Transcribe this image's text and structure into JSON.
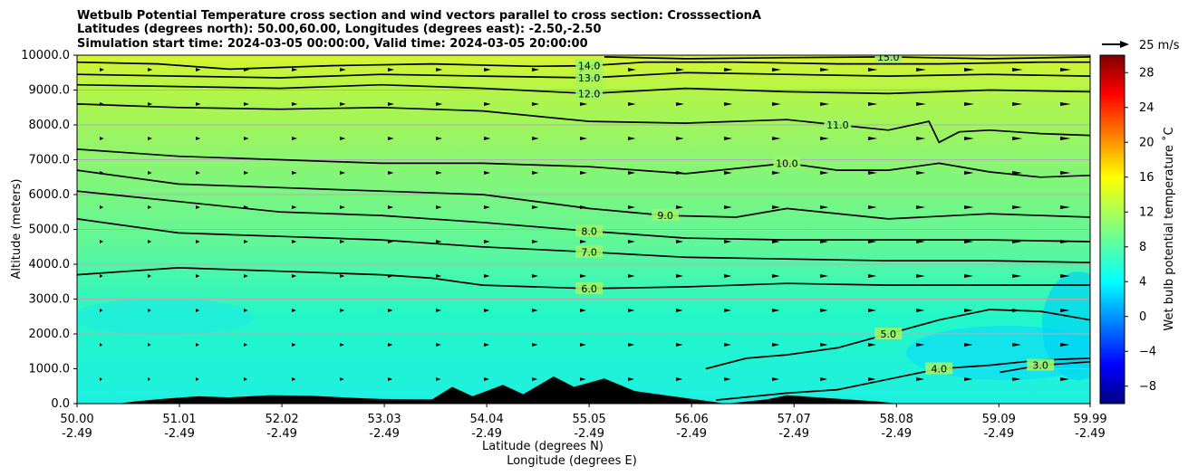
{
  "chart_data": {
    "type": "contour",
    "title_lines": [
      "Wetbulb Potential Temperature cross section and wind vectors parallel to cross section: CrosssectionA",
      "Latitudes (degrees north): 50.00,60.00, Longitudes (degrees east): -2.50,-2.50",
      "Simulation start time: 2024-03-05 00:00:00, Valid time: 2024-03-05 20:00:00"
    ],
    "ylabel": "Altitude (meters)",
    "xlabel_lines": [
      "Latitude (degrees N)",
      "Longitude (degrees E)"
    ],
    "ylim": [
      0,
      10000
    ],
    "y_ticks": [
      0,
      1000,
      2000,
      3000,
      4000,
      5000,
      6000,
      7000,
      8000,
      9000,
      10000
    ],
    "y_tick_labels": [
      "0.0",
      "1000.0",
      "2000.0",
      "3000.0",
      "4000.0",
      "5000.0",
      "6000.0",
      "7000.0",
      "8000.0",
      "9000.0",
      "10000.0"
    ],
    "xlim": [
      50.0,
      59.99
    ],
    "x_ticks": [
      50.0,
      51.01,
      52.02,
      53.03,
      54.04,
      55.05,
      56.06,
      57.07,
      58.08,
      59.09,
      59.99
    ],
    "x_tick_labels_lat": [
      "50.00",
      "51.01",
      "52.02",
      "53.03",
      "54.04",
      "55.05",
      "56.06",
      "57.07",
      "58.08",
      "59.09",
      "59.99"
    ],
    "x_tick_labels_lon": [
      "-2.49",
      "-2.49",
      "-2.49",
      "-2.49",
      "-2.49",
      "-2.49",
      "-2.49",
      "-2.49",
      "-2.49",
      "-2.49",
      "-2.49"
    ],
    "grid": "horizontal",
    "colorbar": {
      "label": "Wet bulb potential temperature ˚C",
      "range": [
        -10,
        30
      ],
      "ticks": [
        -8,
        -4,
        0,
        4,
        8,
        12,
        16,
        20,
        24,
        28
      ],
      "tick_labels": [
        "−8",
        "−4",
        "0",
        "4",
        "8",
        "12",
        "16",
        "20",
        "24",
        "28"
      ],
      "colormap": "jet"
    },
    "wind_key": {
      "label": "25 m/s",
      "value_ms": 25
    },
    "contour_levels": [
      3,
      4,
      5,
      6,
      7,
      8,
      9,
      10,
      11,
      12,
      13,
      14,
      15
    ],
    "contours": [
      {
        "level": 15.0,
        "label": "15.0",
        "x": [
          55.2,
          56.0,
          57.0,
          58.0,
          59.0,
          59.99
        ],
        "y": [
          9950,
          9900,
          9930,
          9950,
          9900,
          9950
        ]
      },
      {
        "level": 14.0,
        "label": "14.0",
        "x": [
          50.0,
          50.8,
          51.5,
          52.5,
          53.5,
          54.5,
          55.05,
          55.6,
          56.5,
          57.5,
          58.5,
          59.5,
          59.99
        ],
        "y": [
          9800,
          9750,
          9600,
          9700,
          9750,
          9680,
          9700,
          9800,
          9800,
          9750,
          9750,
          9800,
          9800
        ]
      },
      {
        "level": 13.0,
        "label": "13.0",
        "x": [
          50.0,
          51.0,
          52.0,
          53.0,
          54.0,
          55.05,
          56.0,
          57.0,
          58.0,
          59.0,
          59.99
        ],
        "y": [
          9450,
          9400,
          9350,
          9450,
          9400,
          9350,
          9500,
          9450,
          9400,
          9450,
          9400
        ]
      },
      {
        "level": 12.0,
        "label": "12.0",
        "x": [
          50.0,
          51.0,
          52.0,
          53.0,
          54.0,
          55.05,
          56.0,
          57.0,
          58.0,
          59.0,
          59.99
        ],
        "y": [
          9150,
          9100,
          9050,
          9150,
          9050,
          8900,
          9050,
          8950,
          8900,
          9000,
          8950
        ]
      },
      {
        "level": 11.0,
        "label": "11.0",
        "x": [
          50.0,
          51.0,
          52.0,
          53.0,
          54.0,
          55.05,
          56.0,
          57.0,
          57.5,
          58.0,
          58.4,
          58.5,
          58.7,
          59.0,
          59.5,
          59.99
        ],
        "y": [
          8600,
          8500,
          8450,
          8500,
          8400,
          8100,
          8050,
          8150,
          8000,
          7850,
          8100,
          7500,
          7800,
          7850,
          7750,
          7700
        ]
      },
      {
        "level": 10.0,
        "label": "10.0",
        "x": [
          50.0,
          51.0,
          52.0,
          53.0,
          54.0,
          55.05,
          56.0,
          57.0,
          57.5,
          58.0,
          58.5,
          59.0,
          59.5,
          59.99
        ],
        "y": [
          7300,
          7100,
          7000,
          6900,
          6900,
          6800,
          6600,
          6900,
          6700,
          6700,
          6900,
          6650,
          6500,
          6550
        ]
      },
      {
        "level": 9.0,
        "label": "9.0",
        "x": [
          50.0,
          51.0,
          52.0,
          53.0,
          54.0,
          55.05,
          55.8,
          56.5,
          57.0,
          58.0,
          59.0,
          59.99
        ],
        "y": [
          6700,
          6300,
          6200,
          6100,
          6000,
          5600,
          5400,
          5350,
          5600,
          5300,
          5450,
          5350
        ]
      },
      {
        "level": 8.0,
        "label": "8.0",
        "x": [
          50.0,
          51.0,
          52.0,
          53.0,
          54.0,
          55.05,
          56.0,
          57.0,
          58.0,
          59.0,
          59.99
        ],
        "y": [
          6100,
          5800,
          5500,
          5400,
          5200,
          4950,
          4750,
          4700,
          4700,
          4700,
          4650
        ]
      },
      {
        "level": 7.0,
        "label": "7.0",
        "x": [
          50.0,
          51.0,
          52.0,
          53.0,
          54.0,
          55.05,
          56.0,
          57.0,
          58.0,
          59.0,
          59.99
        ],
        "y": [
          5300,
          4900,
          4800,
          4700,
          4500,
          4350,
          4200,
          4150,
          4100,
          4100,
          4050
        ]
      },
      {
        "level": 6.0,
        "label": "6.0",
        "x": [
          50.0,
          51.0,
          52.0,
          53.0,
          53.5,
          54.0,
          55.05,
          56.0,
          57.0,
          58.0,
          59.0,
          59.99
        ],
        "y": [
          3700,
          3900,
          3800,
          3700,
          3600,
          3400,
          3300,
          3350,
          3450,
          3400,
          3400,
          3400
        ]
      },
      {
        "level": 5.0,
        "label": "5.0",
        "x": [
          56.2,
          56.6,
          57.0,
          57.5,
          58.0,
          58.5,
          59.0,
          59.5,
          59.99
        ],
        "y": [
          1000,
          1300,
          1400,
          1600,
          2000,
          2400,
          2700,
          2650,
          2400
        ]
      },
      {
        "level": 4.0,
        "label": "4.0",
        "x": [
          56.3,
          57.0,
          57.5,
          58.0,
          58.5,
          59.0,
          59.5,
          59.99
        ],
        "y": [
          100,
          300,
          400,
          700,
          1000,
          1100,
          1250,
          1300
        ]
      },
      {
        "level": 3.0,
        "label": "3.0",
        "x": [
          59.1,
          59.5,
          59.99
        ],
        "y": [
          900,
          1100,
          1200
        ]
      }
    ]
  }
}
